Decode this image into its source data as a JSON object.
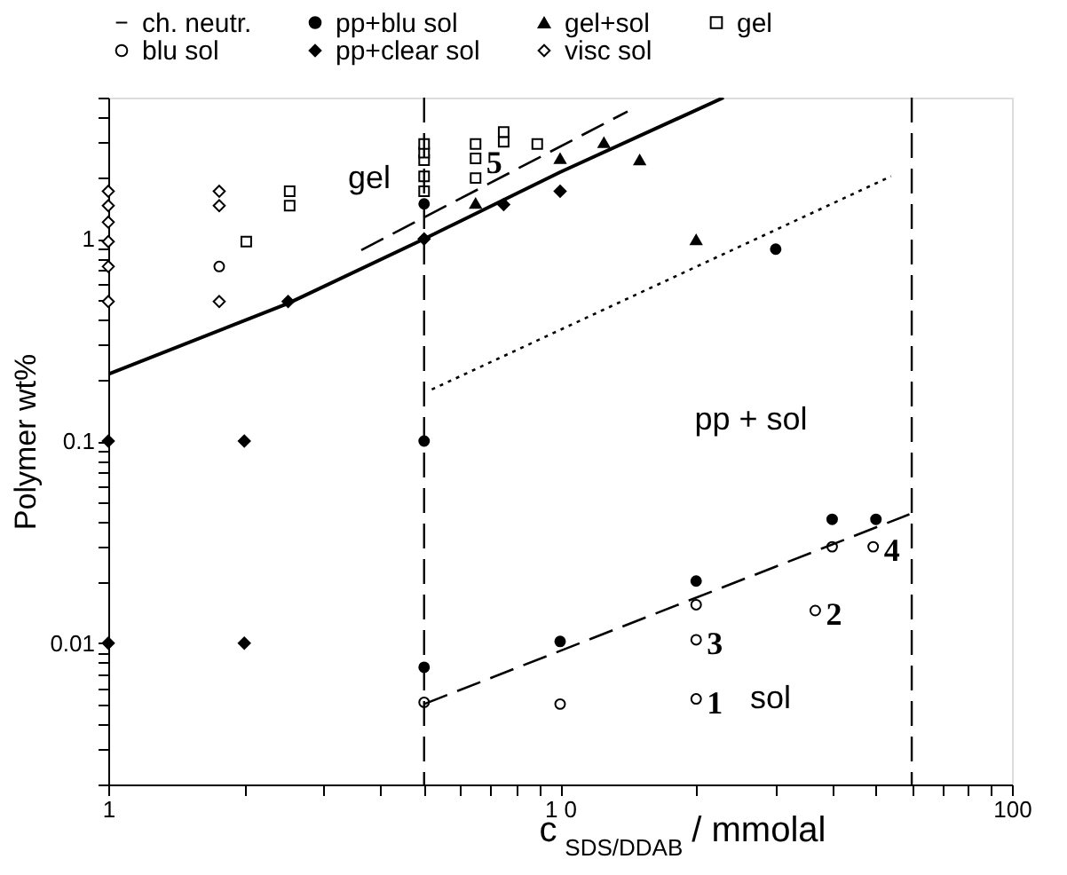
{
  "chart_data": {
    "type": "scatter",
    "xlabel": "c$_{SDS/DDAB}$ / mmolal",
    "ylabel": "Polymer wt%",
    "log": "xy",
    "grid": false,
    "legend": "top",
    "xlim": [
      1,
      100
    ],
    "ylim": [
      0.002,
      5
    ],
    "xticks": [
      1,
      {
        "value": 2,
        "label": null
      },
      {
        "value": 3,
        "label": null
      },
      {
        "value": 4,
        "label": null
      },
      {
        "value": 5,
        "label": null
      },
      {
        "value": 6,
        "label": null
      },
      {
        "value": 7,
        "label": null
      },
      {
        "value": 8,
        "label": null
      },
      {
        "value": 9,
        "label": null
      },
      {
        "value": 10,
        "label": "1 0"
      },
      {
        "value": 20,
        "label": null
      },
      {
        "value": 30,
        "label": null
      },
      {
        "value": 40,
        "label": null
      },
      {
        "value": 50,
        "label": null
      },
      {
        "value": 60,
        "label": null
      },
      {
        "value": 70,
        "label": null
      },
      {
        "value": 80,
        "label": null
      },
      {
        "value": 90,
        "label": null
      },
      100
    ],
    "yticks": [
      {
        "value": 0.002,
        "label": null
      },
      {
        "value": 0.003,
        "label": null
      },
      {
        "value": 0.004,
        "label": null
      },
      {
        "value": 0.005,
        "label": null
      },
      {
        "value": 0.006,
        "label": null
      },
      {
        "value": 0.007,
        "label": null
      },
      {
        "value": 0.008,
        "label": null
      },
      {
        "value": 0.009,
        "label": null
      },
      0.01,
      {
        "value": 0.02,
        "label": null
      },
      {
        "value": 0.03,
        "label": null
      },
      {
        "value": 0.04,
        "label": null
      },
      {
        "value": 0.05,
        "label": null
      },
      {
        "value": 0.06,
        "label": null
      },
      {
        "value": 0.07,
        "label": null
      },
      {
        "value": 0.08,
        "label": null
      },
      {
        "value": 0.09,
        "label": null
      },
      0.1,
      {
        "value": 0.2,
        "label": null
      },
      {
        "value": 0.3,
        "label": null
      },
      {
        "value": 0.4,
        "label": null
      },
      {
        "value": 0.5,
        "label": null
      },
      {
        "value": 0.6,
        "label": null
      },
      {
        "value": 0.7,
        "label": null
      },
      {
        "value": 0.8,
        "label": null
      },
      {
        "value": 0.9,
        "label": null
      },
      1,
      {
        "value": 2,
        "label": null
      },
      {
        "value": 3,
        "label": null
      },
      {
        "value": 4,
        "label": null
      },
      {
        "value": 5,
        "label": null
      }
    ],
    "series": [
      {
        "name": "ch. neutr.",
        "type": "line",
        "line_style": "solid",
        "color": "#000000",
        "x": [
          1,
          2.5,
          5,
          10,
          23
        ],
        "values": [
          0.214,
          0.48,
          1.0,
          2.14,
          5
        ]
      },
      {
        "name": "pp+blu sol",
        "marker": "circle",
        "color": "#000000",
        "x": [
          5,
          5,
          5,
          10,
          20,
          30,
          40,
          50
        ],
        "values": [
          1.49,
          0.1,
          0.0076,
          0.0102,
          0.0203,
          0.89,
          0.041,
          0.041
        ]
      },
      {
        "name": "gel+sol",
        "marker": "triangle",
        "color": "#000000",
        "x": [
          6.5,
          10,
          12.5,
          15,
          20
        ],
        "values": [
          1.5,
          2.5,
          3.0,
          2.46,
          0.99
        ]
      },
      {
        "name": "gel",
        "marker": "square",
        "color": "#ffffff",
        "x": [
          2.02,
          2.52,
          2.52,
          5,
          5,
          5,
          5,
          5,
          6.5,
          6.5,
          6.5,
          7.5,
          7.5,
          8.9
        ],
        "values": [
          0.97,
          1.46,
          1.72,
          1.72,
          2.04,
          2.45,
          2.67,
          2.95,
          2.0,
          2.5,
          2.95,
          3.02,
          3.38,
          2.95
        ]
      },
      {
        "name": "blu sol",
        "marker": "circle",
        "color": "#ffffff",
        "x": [
          1.76,
          5,
          10,
          20,
          20,
          20,
          36.7,
          40,
          49.3
        ],
        "values": [
          0.73,
          0.0051,
          0.005,
          0.0155,
          0.0104,
          0.0053,
          0.0145,
          0.03,
          0.03
        ]
      },
      {
        "name": "pp+clear sol",
        "marker": "diamond",
        "color": "#000000",
        "x": [
          1,
          1,
          2,
          2,
          2.5,
          5,
          7.5,
          10
        ],
        "values": [
          0.1,
          0.01,
          0.1,
          0.01,
          0.49,
          1.0,
          1.48,
          1.72
        ]
      },
      {
        "name": "visc sol",
        "marker": "diamond",
        "color": "#ffffff",
        "x": [
          1,
          1,
          1,
          1,
          1,
          1,
          1.76,
          1.76,
          1.76
        ],
        "values": [
          1.72,
          1.46,
          1.21,
          0.97,
          0.73,
          0.49,
          1.72,
          1.46,
          0.49
        ]
      },
      {
        "type": "line",
        "line_style": "dashed",
        "color": "#000000",
        "x": [
          3.63,
          14.1
        ],
        "values": [
          0.88,
          4.27
        ]
      },
      {
        "type": "line",
        "line_style": "dotted",
        "color": "#000000",
        "x": [
          5.2,
          54
        ],
        "values": [
          0.18,
          2.04
        ]
      },
      {
        "type": "line",
        "line_style": "dashed",
        "color": "#000000",
        "x": [
          5,
          59.3
        ],
        "values": [
          0.005,
          0.0434
        ]
      }
    ],
    "ref_lines": [
      {
        "axis": "x",
        "value": 5,
        "line_style": "dashed",
        "color": "#000000"
      },
      {
        "axis": "x",
        "value": 60,
        "line_style": "dashed",
        "color": "#000000"
      }
    ],
    "annotations": [
      "gel",
      "pp + sol",
      "sol",
      {
        "text": "1",
        "x": 20,
        "y": 0.0053
      },
      {
        "text": "2",
        "x": 36.7,
        "y": 0.0145
      },
      {
        "text": "3",
        "x": 20,
        "y": 0.0104
      },
      {
        "text": "4",
        "x": 49.3,
        "y": 0.03
      },
      {
        "text": "5",
        "x": 6.5,
        "y": 2.5
      }
    ]
  }
}
